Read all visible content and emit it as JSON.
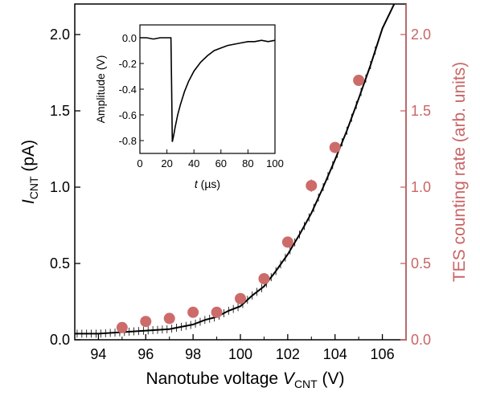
{
  "chart_data": [
    {
      "type": "scatter",
      "x_label_parts": [
        "Nanotube voltage ",
        "V",
        "CNT",
        " (V)"
      ],
      "y_label_parts": [
        "I",
        "CNT",
        " (pA)"
      ],
      "y2_label": "TES counting rate (arb. units)",
      "xlim": [
        93,
        107
      ],
      "ylim": [
        0,
        2.2
      ],
      "y2lim": [
        0,
        2.2
      ],
      "x_ticks": [
        "94",
        "96",
        "98",
        "100",
        "102",
        "104",
        "106"
      ],
      "x_tick_values": [
        94,
        96,
        98,
        100,
        102,
        104,
        106
      ],
      "y_ticks": [
        "0.0",
        "0.5",
        "1.0",
        "1.5",
        "2.0"
      ],
      "y_tick_values": [
        0,
        0.5,
        1.0,
        1.5,
        2.0
      ],
      "y2_ticks": [
        "0.0",
        "0.5",
        "1.0",
        "1.5",
        "2.0"
      ],
      "y2_tick_values": [
        0,
        0.5,
        1.0,
        1.5,
        2.0
      ],
      "colors": {
        "current_line": "#000000",
        "tes_points": "#cd6b6b",
        "right_axis": "#c96565"
      },
      "series": [
        {
          "kind": "line",
          "x": [
            93,
            94,
            95,
            96,
            97,
            98,
            98.5,
            99,
            99.5,
            100,
            100.5,
            101,
            101.5,
            102,
            102.5,
            103,
            103.5,
            104,
            104.5,
            105,
            105.5,
            106,
            106.5
          ],
          "y": [
            0.04,
            0.04,
            0.05,
            0.06,
            0.07,
            0.1,
            0.13,
            0.15,
            0.19,
            0.22,
            0.29,
            0.35,
            0.45,
            0.56,
            0.69,
            0.83,
            1.0,
            1.18,
            1.37,
            1.58,
            1.8,
            2.04,
            2.25
          ]
        },
        {
          "kind": "scatter",
          "x": [
            95,
            96,
            97,
            98,
            99,
            100,
            101,
            102,
            103,
            104,
            105
          ],
          "y": [
            0.08,
            0.12,
            0.14,
            0.18,
            0.18,
            0.27,
            0.4,
            0.64,
            1.01,
            1.26,
            1.7
          ],
          "error": [
            0.02,
            0.02,
            0.02,
            0.02,
            0.02,
            0.02,
            0.02,
            0.02,
            0.04,
            0.03,
            0.02
          ]
        }
      ]
    },
    {
      "type": "line",
      "inset": true,
      "x_label_parts": [
        "t",
        " (µs)"
      ],
      "ylabel": "Amplitude (V)",
      "xlim": [
        0,
        100
      ],
      "ylim": [
        -0.9,
        0.1
      ],
      "x_ticks": [
        "0",
        "20",
        "40",
        "60",
        "80",
        "100"
      ],
      "x_tick_values": [
        0,
        20,
        40,
        60,
        80,
        100
      ],
      "y_ticks": [
        "0.0",
        "-0.2",
        "-0.4",
        "-0.6",
        "-0.8"
      ],
      "y_tick_values": [
        0,
        -0.2,
        -0.4,
        -0.6,
        -0.8
      ],
      "x": [
        0,
        5,
        10,
        15,
        20,
        23,
        23.5,
        24,
        25,
        26,
        28,
        30,
        33,
        36,
        40,
        45,
        50,
        55,
        60,
        65,
        70,
        75,
        80,
        85,
        90,
        95,
        100
      ],
      "y": [
        0.0,
        0.0,
        -0.01,
        0.0,
        0.0,
        0.0,
        -0.4,
        -0.81,
        -0.76,
        -0.7,
        -0.6,
        -0.52,
        -0.42,
        -0.34,
        -0.26,
        -0.19,
        -0.14,
        -0.1,
        -0.08,
        -0.06,
        -0.05,
        -0.04,
        -0.03,
        -0.03,
        -0.02,
        -0.03,
        -0.02
      ]
    }
  ]
}
